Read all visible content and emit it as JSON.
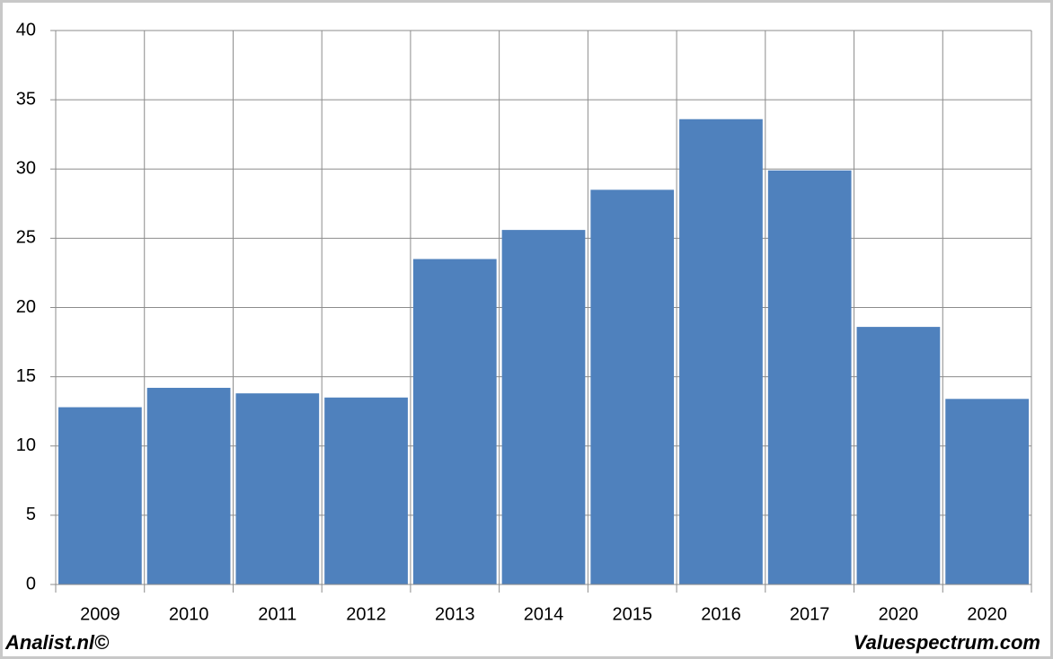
{
  "chart_data": {
    "type": "bar",
    "categories": [
      "2009",
      "2010",
      "2011",
      "2012",
      "2013",
      "2014",
      "2015",
      "2016",
      "2017",
      "2020",
      "2020"
    ],
    "values": [
      12.8,
      14.2,
      13.8,
      13.5,
      23.5,
      25.6,
      28.5,
      33.6,
      29.9,
      18.6,
      13.4
    ],
    "color": "#4f81bd",
    "ylim": [
      0,
      40
    ],
    "yticks": [
      0,
      5,
      10,
      15,
      20,
      25,
      30,
      35,
      40
    ],
    "grid": true,
    "annotations": [
      "Analist.nl©",
      "Valuespectrum.com"
    ]
  }
}
